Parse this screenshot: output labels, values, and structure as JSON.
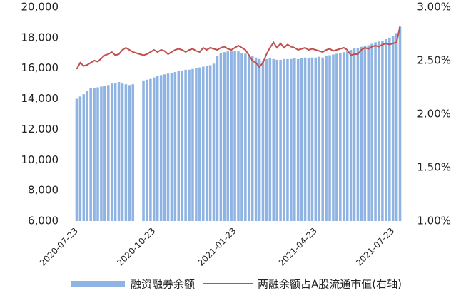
{
  "chart_data": {
    "type": "bar_line",
    "categories": [
      "2020-07-23",
      null,
      null,
      null,
      null,
      null,
      null,
      null,
      null,
      null,
      null,
      null,
      null,
      null,
      null,
      null,
      null,
      null,
      null,
      null,
      null,
      null,
      "2020-10-23",
      null,
      null,
      null,
      null,
      null,
      null,
      null,
      null,
      null,
      null,
      null,
      null,
      null,
      null,
      null,
      null,
      null,
      null,
      null,
      null,
      null,
      null,
      "2021-01-23",
      null,
      null,
      null,
      null,
      null,
      null,
      null,
      null,
      null,
      null,
      null,
      null,
      null,
      null,
      null,
      null,
      null,
      null,
      null,
      null,
      null,
      null,
      "2021-04-23",
      null,
      null,
      null,
      null,
      null,
      null,
      null,
      null,
      null,
      null,
      null,
      null,
      null,
      null,
      null,
      null,
      null,
      null,
      null,
      null,
      null,
      "2021-07-23",
      null,
      null
    ],
    "series": [
      {
        "name": "融资融券余额",
        "color": "#8fb4e3",
        "type": "bar",
        "values": [
          14000,
          14150,
          14300,
          14500,
          14700,
          14700,
          14750,
          14800,
          14850,
          14900,
          15000,
          15050,
          15100,
          15000,
          14950,
          14900,
          14950,
          null,
          null,
          15200,
          15250,
          15300,
          15400,
          15500,
          15550,
          15600,
          15650,
          15700,
          15750,
          15800,
          15850,
          15900,
          15900,
          15950,
          16000,
          16050,
          16100,
          16150,
          16200,
          16300,
          16800,
          17000,
          17050,
          17100,
          17100,
          17150,
          17100,
          17000,
          16950,
          16900,
          16800,
          16700,
          16600,
          16500,
          16600,
          16650,
          16600,
          16550,
          16550,
          16600,
          16600,
          16600,
          16650,
          16600,
          16650,
          16700,
          16650,
          16700,
          16700,
          16750,
          16700,
          16800,
          16850,
          16900,
          16950,
          17000,
          17050,
          17100,
          17200,
          17300,
          17300,
          17400,
          17450,
          17500,
          17600,
          17700,
          17750,
          17800,
          17900,
          18000,
          18100,
          18300,
          18700
        ]
      },
      {
        "name": "两融余额占A股流通市值(右轴)",
        "color": "#c0504d",
        "type": "line",
        "axis": "y2",
        "values": [
          2.42,
          2.48,
          2.45,
          2.46,
          2.48,
          2.5,
          2.49,
          2.52,
          2.55,
          2.56,
          2.58,
          2.55,
          2.56,
          2.6,
          2.62,
          2.6,
          2.58,
          2.57,
          2.56,
          2.55,
          2.56,
          2.58,
          2.6,
          2.58,
          2.6,
          2.59,
          2.56,
          2.58,
          2.6,
          2.61,
          2.6,
          2.58,
          2.6,
          2.61,
          2.59,
          2.58,
          2.62,
          2.6,
          2.62,
          2.61,
          2.6,
          2.62,
          2.63,
          2.61,
          2.6,
          2.62,
          2.64,
          2.62,
          2.6,
          2.55,
          2.5,
          2.48,
          2.44,
          2.48,
          2.56,
          2.62,
          2.67,
          2.62,
          2.66,
          2.62,
          2.65,
          2.63,
          2.62,
          2.6,
          2.61,
          2.62,
          2.6,
          2.61,
          2.6,
          2.59,
          2.58,
          2.6,
          2.61,
          2.59,
          2.6,
          2.61,
          2.62,
          2.6,
          2.55,
          2.56,
          2.56,
          2.6,
          2.62,
          2.61,
          2.63,
          2.64,
          2.63,
          2.65,
          2.66,
          2.65,
          2.66,
          2.67,
          2.82
        ]
      }
    ],
    "ylim": [
      6000,
      20000
    ],
    "yticks": [
      {
        "value": 6000,
        "label": "6,000"
      },
      {
        "value": 8000,
        "label": "8,000"
      },
      {
        "value": 10000,
        "label": "10,000"
      },
      {
        "value": 12000,
        "label": "12,000"
      },
      {
        "value": 14000,
        "label": "14,000"
      },
      {
        "value": 16000,
        "label": "16,000"
      },
      {
        "value": 18000,
        "label": "18,000"
      },
      {
        "value": 20000,
        "label": "20,000"
      }
    ],
    "y2lim": [
      1,
      3
    ],
    "y2ticks": [
      {
        "value": 1,
        "label": "1.00%"
      },
      {
        "value": 1.5,
        "label": "1.50%"
      },
      {
        "value": 2,
        "label": "2.00%"
      },
      {
        "value": 2.5,
        "label": "2.50%"
      },
      {
        "value": 3,
        "label": "3.00%"
      }
    ],
    "legend": "bottom"
  }
}
